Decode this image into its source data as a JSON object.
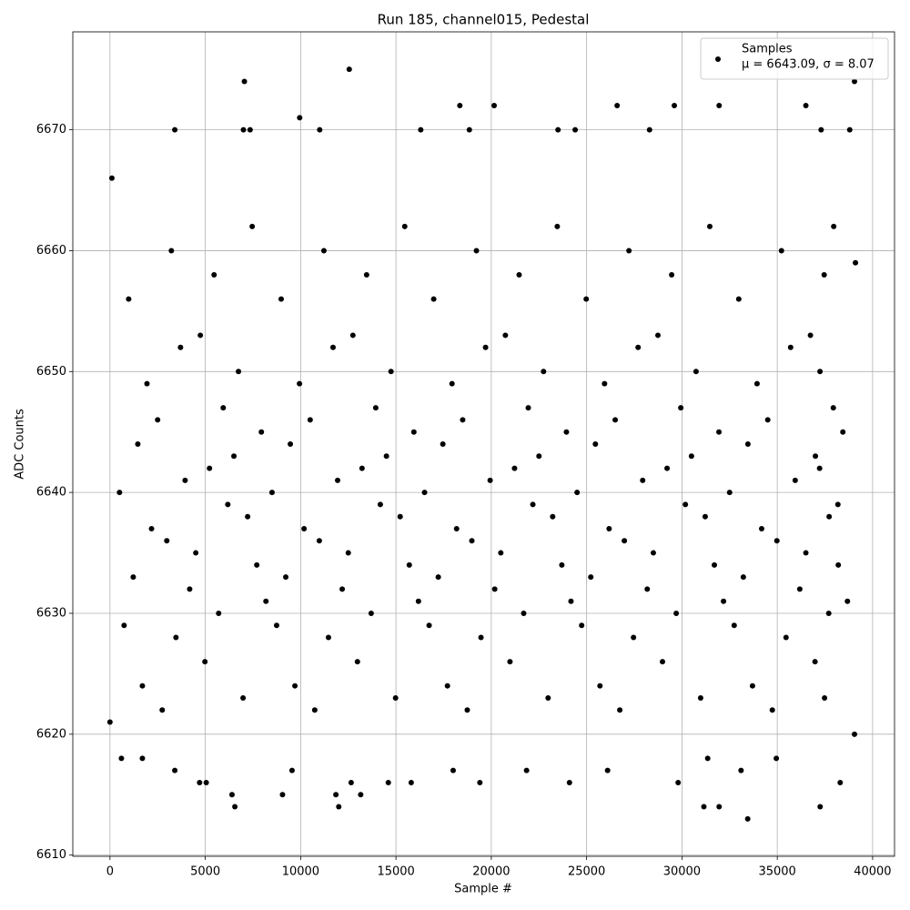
{
  "chart_data": {
    "type": "scatter",
    "title": "Run 185, channel015, Pedestal",
    "xlabel": "Sample #",
    "ylabel": "ADC Counts",
    "xlim": [
      -1950,
      41150
    ],
    "ylim": [
      6609.9,
      6678.1
    ],
    "xticks": [
      0,
      5000,
      10000,
      15000,
      20000,
      25000,
      30000,
      35000,
      40000
    ],
    "yticks": [
      6610,
      6620,
      6630,
      6640,
      6650,
      6660,
      6670
    ],
    "grid": true,
    "legend": "upper right",
    "stats_label": "μ = 6643.09, σ = 8.07",
    "series": [
      {
        "name": "Samples",
        "color": "#000000",
        "x": [
          7050,
          12550,
          39050,
          33450,
          6550,
          12000,
          31150,
          31950,
          37250,
          3400,
          7000,
          7350,
          9950,
          11000,
          16300,
          18350,
          18850,
          20150,
          23500,
          24400,
          26600,
          28300,
          29600,
          31950,
          36500,
          37300,
          38800,
          600,
          1700,
          3400,
          4700,
          5050,
          6400,
          9050,
          9550,
          11850,
          12650,
          13150,
          14600,
          15800,
          18000,
          19400,
          21850,
          24100,
          26100,
          29800,
          31350,
          33100,
          34950,
          38300,
          0,
          39050,
          39100,
          100,
          500,
          740,
          980,
          1220,
          1460,
          1700,
          1940,
          2180,
          2500,
          2740,
          2980,
          3220,
          3460,
          3700,
          3940,
          4180,
          4500,
          4740,
          4980,
          5220,
          5460,
          5700,
          5940,
          6180,
          6500,
          6740,
          6980,
          7220,
          7460,
          7700,
          7940,
          8180,
          8500,
          8740,
          8980,
          9220,
          9460,
          9700,
          9940,
          10180,
          10500,
          10740,
          10980,
          11220,
          11460,
          11700,
          11940,
          12180,
          12500,
          12740,
          12980,
          13220,
          13460,
          13700,
          13940,
          14180,
          14500,
          14740,
          14980,
          15220,
          15460,
          15700,
          15940,
          16180,
          16500,
          16740,
          16980,
          17220,
          17460,
          17700,
          17940,
          18180,
          18500,
          18740,
          18980,
          19220,
          19460,
          19700,
          19940,
          20180,
          20500,
          20740,
          20980,
          21220,
          21460,
          21700,
          21940,
          22180,
          22500,
          22740,
          22980,
          23220,
          23460,
          23700,
          23940,
          24180,
          24500,
          24740,
          24980,
          25220,
          25460,
          25700,
          25940,
          26180,
          26500,
          26740,
          26980,
          27220,
          27460,
          27700,
          27940,
          28180,
          28500,
          28740,
          28980,
          29220,
          29460,
          29700,
          29940,
          30180,
          30500,
          30740,
          30980,
          31220,
          31460,
          31700,
          31940,
          32180,
          32500,
          32740,
          32980,
          33220,
          33460,
          33700,
          33940,
          34180,
          34500,
          34740,
          34980,
          35220,
          35460,
          35700,
          35940,
          36180,
          36500,
          36740,
          36980,
          37220,
          37460,
          37700,
          37940,
          38180,
          37000,
          37240,
          37480,
          37720,
          37960,
          38200,
          38440,
          38680
        ],
        "values": [
          6674,
          6675,
          6674,
          6613,
          6614,
          6614,
          6614,
          6614,
          6614,
          6670,
          6670,
          6670,
          6671,
          6670,
          6670,
          6672,
          6670,
          6672,
          6670,
          6670,
          6672,
          6670,
          6672,
          6672,
          6672,
          6670,
          6670,
          6618,
          6618,
          6617,
          6616,
          6616,
          6615,
          6615,
          6617,
          6615,
          6616,
          6615,
          6616,
          6616,
          6617,
          6616,
          6617,
          6616,
          6617,
          6616,
          6618,
          6617,
          6618,
          6616,
          6621,
          6620,
          6659,
          6666,
          6640,
          6629,
          6656,
          6633,
          6644,
          6624,
          6649,
          6637,
          6646,
          6622,
          6636,
          6660,
          6628,
          6652,
          6641,
          6632,
          6635,
          6653,
          6626,
          6642,
          6658,
          6630,
          6647,
          6639,
          6643,
          6650,
          6623,
          6638,
          6662,
          6634,
          6645,
          6631,
          6640,
          6629,
          6656,
          6633,
          6644,
          6624,
          6649,
          6637,
          6646,
          6622,
          6636,
          6660,
          6628,
          6652,
          6641,
          6632,
          6635,
          6653,
          6626,
          6642,
          6658,
          6630,
          6647,
          6639,
          6643,
          6650,
          6623,
          6638,
          6662,
          6634,
          6645,
          6631,
          6640,
          6629,
          6656,
          6633,
          6644,
          6624,
          6649,
          6637,
          6646,
          6622,
          6636,
          6660,
          6628,
          6652,
          6641,
          6632,
          6635,
          6653,
          6626,
          6642,
          6658,
          6630,
          6647,
          6639,
          6643,
          6650,
          6623,
          6638,
          6662,
          6634,
          6645,
          6631,
          6640,
          6629,
          6656,
          6633,
          6644,
          6624,
          6649,
          6637,
          6646,
          6622,
          6636,
          6660,
          6628,
          6652,
          6641,
          6632,
          6635,
          6653,
          6626,
          6642,
          6658,
          6630,
          6647,
          6639,
          6643,
          6650,
          6623,
          6638,
          6662,
          6634,
          6645,
          6631,
          6640,
          6629,
          6656,
          6633,
          6644,
          6624,
          6649,
          6637,
          6646,
          6622,
          6636,
          6660,
          6628,
          6652,
          6641,
          6632,
          6635,
          6653,
          6626,
          6642,
          6658,
          6630,
          6647,
          6639,
          6643,
          6650,
          6623,
          6638,
          6662,
          6634,
          6645,
          6631
        ]
      }
    ]
  }
}
